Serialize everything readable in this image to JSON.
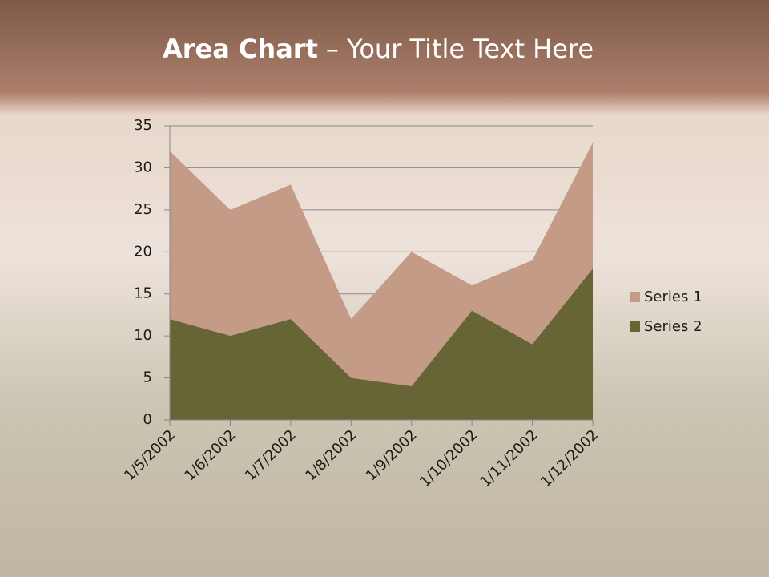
{
  "chart_data": {
    "type": "area",
    "title_bold": "Area Chart",
    "title_rest": "– Your Title Text Here",
    "categories": [
      "1/5/2002",
      "1/6/2002",
      "1/7/2002",
      "1/8/2002",
      "1/9/2002",
      "1/10/2002",
      "1/11/2002",
      "1/12/2002"
    ],
    "series": [
      {
        "name": "Series 1",
        "color": "#c49b87",
        "values": [
          32,
          25,
          28,
          12,
          20,
          16,
          19,
          33
        ]
      },
      {
        "name": "Series 2",
        "color": "#676535",
        "values": [
          12,
          10,
          12,
          5,
          4,
          13,
          9,
          18
        ]
      }
    ],
    "ylim": [
      0,
      35
    ],
    "yticks": [
      0,
      5,
      10,
      15,
      20,
      25,
      30,
      35
    ],
    "grid": true,
    "legend": "right"
  }
}
